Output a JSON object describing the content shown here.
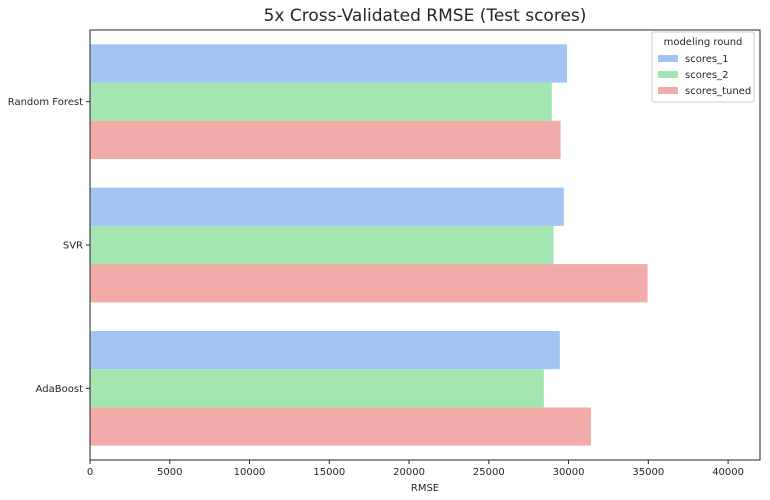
{
  "chart_data": {
    "type": "bar",
    "orientation": "horizontal",
    "title": "5x Cross-Validated RMSE (Test scores)",
    "xlabel": "RMSE",
    "ylabel": "",
    "xlim": [
      0,
      42000
    ],
    "xticks": [
      0,
      5000,
      10000,
      15000,
      20000,
      25000,
      30000,
      35000,
      40000
    ],
    "categories": [
      "Random Forest",
      "SVR",
      "AdaBoost"
    ],
    "series": [
      {
        "name": "scores_1",
        "color": "#a1c4f2",
        "values": [
          29900,
          29700,
          29450
        ]
      },
      {
        "name": "scores_2",
        "color": "#a3e5b0",
        "values": [
          28950,
          29050,
          28450
        ]
      },
      {
        "name": "scores_tuned",
        "color": "#f1aba9",
        "values": [
          29500,
          34950,
          31400
        ]
      }
    ],
    "legend": {
      "title": "modeling round",
      "placement": "top-right"
    },
    "grid": false
  }
}
